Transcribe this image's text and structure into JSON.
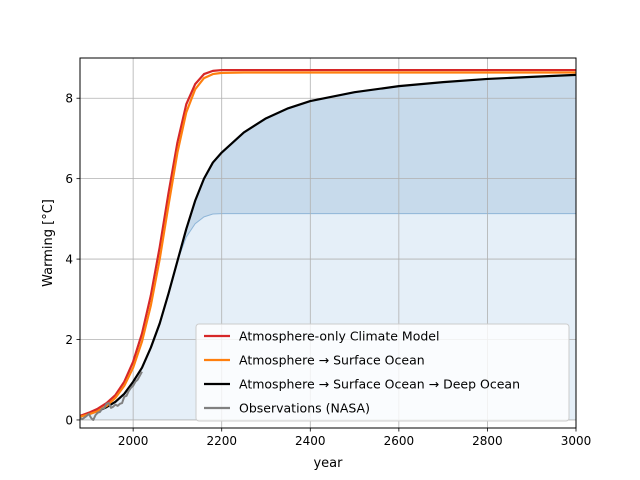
{
  "chart_data": {
    "type": "line",
    "xlabel": "year",
    "ylabel": "Warming [°C]",
    "xlim": [
      1880,
      3000
    ],
    "ylim": [
      -0.2,
      9.0
    ],
    "xticks": [
      2000,
      2200,
      2400,
      2600,
      2800,
      3000
    ],
    "yticks": [
      0,
      2,
      4,
      6,
      8
    ],
    "grid": true,
    "legend_position": "lower-right",
    "series": [
      {
        "name": "Atmosphere-only Climate Model",
        "color": "#d62728",
        "x": [
          1880,
          1900,
          1920,
          1940,
          1960,
          1980,
          2000,
          2020,
          2040,
          2060,
          2080,
          2100,
          2120,
          2140,
          2160,
          2180,
          2200,
          2250,
          2300,
          2400,
          2600,
          2800,
          3000
        ],
        "y": [
          0.1,
          0.18,
          0.28,
          0.42,
          0.62,
          0.95,
          1.45,
          2.15,
          3.1,
          4.3,
          5.65,
          6.9,
          7.85,
          8.35,
          8.6,
          8.68,
          8.7,
          8.7,
          8.7,
          8.7,
          8.7,
          8.7,
          8.7
        ]
      },
      {
        "name": "Atmosphere → Surface Ocean",
        "color": "#ff7f0e",
        "x": [
          1880,
          1900,
          1920,
          1940,
          1960,
          1980,
          2000,
          2020,
          2040,
          2060,
          2080,
          2100,
          2120,
          2140,
          2160,
          2180,
          2200,
          2250,
          2300,
          2400,
          2600,
          2800,
          3000
        ],
        "y": [
          0.08,
          0.14,
          0.22,
          0.35,
          0.55,
          0.85,
          1.3,
          1.95,
          2.85,
          4.0,
          5.35,
          6.65,
          7.65,
          8.22,
          8.5,
          8.6,
          8.63,
          8.64,
          8.64,
          8.64,
          8.64,
          8.64,
          8.64
        ]
      },
      {
        "name": "Atmosphere → Surface Ocean → Deep Ocean",
        "color": "#000000",
        "x": [
          1880,
          1900,
          1920,
          1940,
          1960,
          1980,
          2000,
          2020,
          2040,
          2060,
          2080,
          2100,
          2120,
          2140,
          2160,
          2180,
          2200,
          2250,
          2300,
          2350,
          2400,
          2500,
          2600,
          2700,
          2800,
          2900,
          3000
        ],
        "y": [
          0.1,
          0.15,
          0.22,
          0.32,
          0.45,
          0.65,
          0.95,
          1.3,
          1.8,
          2.4,
          3.15,
          3.95,
          4.75,
          5.45,
          6.0,
          6.4,
          6.65,
          7.15,
          7.5,
          7.75,
          7.93,
          8.15,
          8.3,
          8.4,
          8.48,
          8.53,
          8.58
        ]
      },
      {
        "name": "Observations (NASA)",
        "color": "#808080",
        "x": [
          1880,
          1885,
          1890,
          1895,
          1900,
          1905,
          1910,
          1915,
          1920,
          1925,
          1930,
          1935,
          1940,
          1945,
          1950,
          1955,
          1960,
          1965,
          1970,
          1975,
          1980,
          1985,
          1990,
          1995,
          2000,
          2005,
          2010,
          2015,
          2020
        ],
        "y": [
          0.05,
          0.02,
          0.06,
          0.1,
          0.15,
          0.05,
          0.0,
          0.12,
          0.18,
          0.2,
          0.28,
          0.3,
          0.4,
          0.42,
          0.3,
          0.33,
          0.38,
          0.35,
          0.4,
          0.42,
          0.58,
          0.6,
          0.72,
          0.8,
          0.85,
          0.95,
          1.0,
          1.1,
          1.2
        ]
      }
    ],
    "fills": [
      {
        "name": "Atmosphere → Surface Ocean → Deep Ocean",
        "color": "#8fb6d8",
        "opacity": 0.5,
        "x": [
          1880,
          1900,
          1920,
          1940,
          1960,
          1980,
          2000,
          2020,
          2040,
          2060,
          2080,
          2100,
          2120,
          2140,
          2160,
          2180,
          2200,
          2250,
          2300,
          2400,
          2600,
          2800,
          3000
        ],
        "y_low": [
          0.1,
          0.15,
          0.22,
          0.32,
          0.45,
          0.65,
          0.95,
          1.3,
          1.8,
          2.4,
          3.15,
          3.95,
          4.55,
          4.88,
          5.05,
          5.12,
          5.13,
          5.13,
          5.13,
          5.13,
          5.13,
          5.13,
          5.13
        ],
        "y_high_series": 2
      },
      {
        "name": "Atmosphere → Surface Ocean → Deep Ocean",
        "color": "#c6dcef",
        "opacity": 0.45,
        "x": [
          1880,
          1900,
          1920,
          1940,
          1960,
          1980,
          2000,
          2020,
          2040,
          2060,
          2080,
          2100,
          2120,
          2140,
          2160,
          2180,
          2200,
          2250,
          2300,
          2400,
          2600,
          2800,
          3000
        ],
        "y_high": [
          0.1,
          0.15,
          0.22,
          0.32,
          0.45,
          0.65,
          0.95,
          1.3,
          1.8,
          2.4,
          3.15,
          3.95,
          4.55,
          4.88,
          5.05,
          5.12,
          5.13,
          5.13,
          5.13,
          5.13,
          5.13,
          5.13,
          5.13
        ],
        "y_low_value": 0
      }
    ]
  }
}
